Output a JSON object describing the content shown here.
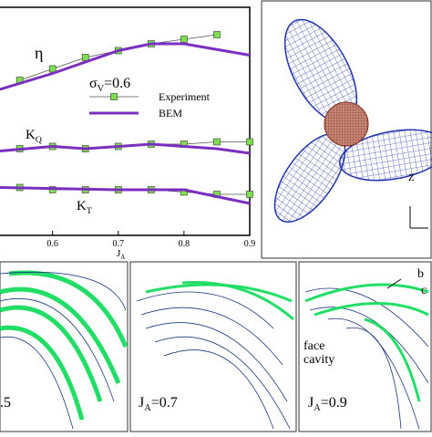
{
  "chart_data": {
    "type": "line",
    "xlabel": [
      "J",
      "A"
    ],
    "xlim": [
      0.52,
      0.9
    ],
    "xticks": [
      0.6,
      0.7,
      0.8,
      0.9
    ],
    "ylim": [
      0,
      1
    ],
    "series": [
      {
        "name": "Experiment",
        "color": "#555555",
        "marker_color": "#7ee04e",
        "curves": [
          {
            "x": [
              0.55,
              0.6,
              0.65,
              0.7,
              0.75,
              0.8,
              0.85
            ],
            "values": [
              0.68,
              0.73,
              0.78,
              0.81,
              0.84,
              0.86,
              0.88
            ]
          },
          {
            "x": [
              0.55,
              0.6,
              0.65,
              0.7,
              0.75,
              0.8,
              0.85,
              0.9
            ],
            "values": [
              0.38,
              0.39,
              0.38,
              0.39,
              0.4,
              0.4,
              0.41,
              0.41
            ]
          },
          {
            "x": [
              0.55,
              0.6,
              0.65,
              0.7,
              0.75,
              0.8,
              0.85,
              0.9
            ],
            "values": [
              0.21,
              0.2,
              0.2,
              0.2,
              0.2,
              0.19,
              0.18,
              0.18
            ]
          }
        ]
      },
      {
        "name": "BEM",
        "color": "#7b2fbf",
        "curves": [
          {
            "x": [
              0.52,
              0.6,
              0.7,
              0.75,
              0.8,
              0.9
            ],
            "values": [
              0.64,
              0.71,
              0.81,
              0.84,
              0.84,
              0.79
            ]
          },
          {
            "x": [
              0.52,
              0.6,
              0.65,
              0.75,
              0.85,
              0.9
            ],
            "values": [
              0.37,
              0.39,
              0.38,
              0.4,
              0.38,
              0.36
            ]
          },
          {
            "x": [
              0.52,
              0.7,
              0.8,
              0.9
            ],
            "values": [
              0.21,
              0.2,
              0.2,
              0.14
            ]
          }
        ]
      }
    ],
    "annotations": [
      {
        "main": "η"
      },
      {
        "main": "σ",
        "sub": "V",
        "tail": "=0.6"
      },
      {
        "main": "K",
        "sub": "Q"
      },
      {
        "main": "K",
        "sub": "T"
      }
    ]
  },
  "panels": {
    "axis_label": "Z",
    "cavity": [
      {
        "main": ".5"
      },
      {
        "main": "J",
        "sub": "A",
        "tail": "=0.7"
      },
      {
        "main": "J",
        "sub": "A",
        "tail": "=0.9"
      }
    ],
    "face_cavity": [
      "face",
      "cavity"
    ],
    "back_cavity": [
      "b",
      "c"
    ]
  }
}
